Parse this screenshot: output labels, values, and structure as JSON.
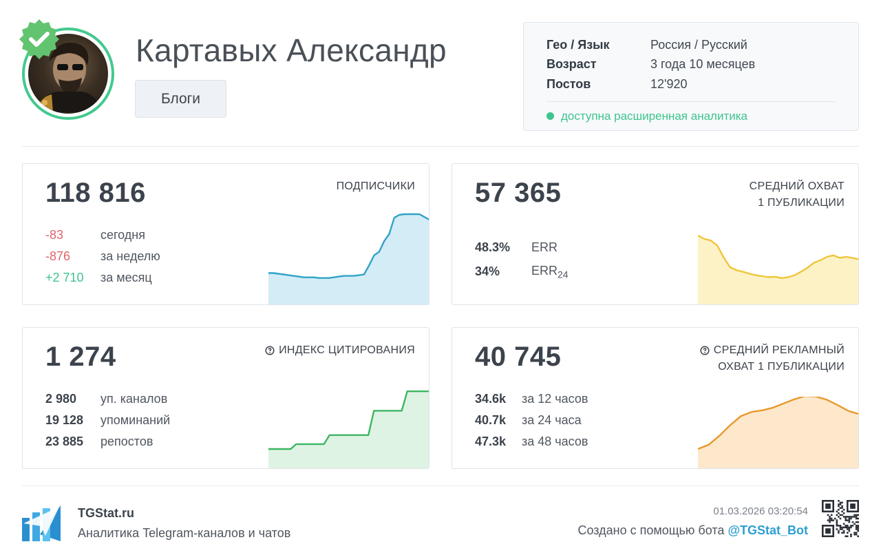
{
  "header": {
    "channel_name": "Картавых Александр",
    "category": "Блоги",
    "avatar_alt": "аватар канала"
  },
  "info": {
    "rows": [
      {
        "key": "Гео / Язык",
        "value": "Россия / Русский"
      },
      {
        "key": "Возраст",
        "value": "3 года 10 месяцев"
      },
      {
        "key": "Постов",
        "value": "12'920"
      }
    ],
    "note": "доступна расширенная аналитика"
  },
  "cards": {
    "subscribers": {
      "value": "118 816",
      "label": "ПОДПИСЧИКИ",
      "rows": [
        {
          "num": "-83",
          "text": "сегодня"
        },
        {
          "num": "-876",
          "text": "за неделю"
        },
        {
          "num": "+2 710",
          "text": "за месяц"
        }
      ]
    },
    "reach": {
      "value": "57 365",
      "label_line1": "СРЕДНИЙ ОХВАТ",
      "label_line2": "1 ПУБЛИКАЦИИ",
      "err": {
        "num": "48.3%",
        "text": "ERR"
      },
      "err24": {
        "num": "34%",
        "text": "ERR",
        "sub": "24"
      }
    },
    "citation": {
      "value": "1 274",
      "label": "ИНДЕКС ЦИТИРОВАНИЯ",
      "rows": [
        {
          "num": "2 980",
          "text": "уп. каналов"
        },
        {
          "num": "19 128",
          "text": "упоминаний"
        },
        {
          "num": "23 885",
          "text": "репостов"
        }
      ]
    },
    "ad_reach": {
      "value": "40 745",
      "label_line1": "СРЕДНИЙ РЕКЛАМНЫЙ",
      "label_line2": "ОХВАТ 1 ПУБЛИКАЦИИ",
      "rows": [
        {
          "num": "34.6k",
          "text": "за 12 часов"
        },
        {
          "num": "40.7k",
          "text": "за 24 часа"
        },
        {
          "num": "47.3k",
          "text": "за 48 часов"
        }
      ]
    }
  },
  "sparklines": {
    "subscribers": {
      "color": "#2fa3c8",
      "fill": "#d3ecf6",
      "values": [
        0.17,
        0.17,
        0.16,
        0.15,
        0.14,
        0.13,
        0.12,
        0.11,
        0.11,
        0.11,
        0.1,
        0.1,
        0.1,
        0.11,
        0.12,
        0.13,
        0.13,
        0.13,
        0.14,
        0.15,
        0.28,
        0.42,
        0.47,
        0.62,
        0.72,
        0.95,
        0.99,
        1.0,
        1.0,
        1.0,
        1.0,
        0.96,
        0.92
      ]
    },
    "reach": {
      "color": "#f0c53a",
      "fill": "#fdf2c6",
      "values": [
        1.0,
        0.93,
        0.9,
        0.8,
        0.56,
        0.36,
        0.3,
        0.27,
        0.23,
        0.2,
        0.18,
        0.16,
        0.17,
        0.14,
        0.16,
        0.2,
        0.27,
        0.35,
        0.45,
        0.5,
        0.57,
        0.6,
        0.55,
        0.57,
        0.55,
        0.52
      ]
    },
    "citation": {
      "color": "#3cb562",
      "fill": "#dff3e4",
      "values": [
        0.0,
        0.0,
        0.0,
        0.0,
        0.0,
        0.07,
        0.07,
        0.07,
        0.07,
        0.07,
        0.07,
        0.2,
        0.2,
        0.2,
        0.2,
        0.2,
        0.2,
        0.2,
        0.2,
        0.55,
        0.55,
        0.55,
        0.55,
        0.55,
        0.55,
        0.83,
        0.83,
        0.83,
        0.83,
        0.83
      ]
    },
    "ad_reach": {
      "color": "#e9982a",
      "fill": "#fde8cb",
      "values": [
        0.0,
        0.08,
        0.25,
        0.45,
        0.62,
        0.7,
        0.73,
        0.78,
        0.86,
        0.94,
        1.0,
        0.99,
        0.93,
        0.83,
        0.72,
        0.66
      ]
    }
  },
  "footer": {
    "brand": "TGStat.ru",
    "tagline": "Аналитика Telegram-каналов и чатов",
    "timestamp": "01.03.2026 03:20:54",
    "created_text": "Создано с помощью бота",
    "bot_handle": "@TGStat_Bot"
  }
}
